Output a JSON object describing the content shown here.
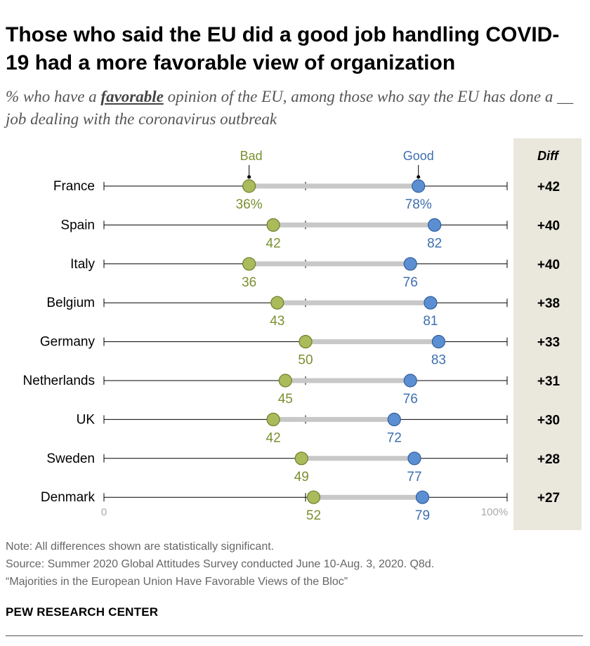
{
  "title": "Those who said the EU did a good job handling COVID-19 had a more favorable view of organization",
  "subtitle": {
    "before": "% who have a ",
    "emphasis": "favorable",
    "after": " opinion of the EU, among those who say the EU has done a __ job dealing with the coronavirus outbreak"
  },
  "colors": {
    "bad": "#a9bb5b",
    "bad_label": "#7a9030",
    "good": "#5b8fd1",
    "good_label": "#3d6fb0",
    "connector": "#c8c8c8",
    "diff_panel": "#eae8dc"
  },
  "chart_data": {
    "type": "dot-plot",
    "series": [
      {
        "name": "Bad",
        "values": [
          36,
          42,
          36,
          43,
          50,
          45,
          42,
          49,
          52
        ]
      },
      {
        "name": "Good",
        "values": [
          78,
          82,
          76,
          81,
          83,
          76,
          72,
          77,
          79
        ]
      }
    ],
    "categories": [
      "France",
      "Spain",
      "Italy",
      "Belgium",
      "Germany",
      "Netherlands",
      "UK",
      "Sweden",
      "Denmark"
    ],
    "diff_header": "Diff",
    "diff_labels": [
      "+42",
      "+40",
      "+40",
      "+38",
      "+33",
      "+31",
      "+30",
      "+28",
      "+27"
    ],
    "first_row_suffix": "%",
    "axis_labels": [
      "0",
      "100%"
    ],
    "xlim": [
      0,
      100
    ],
    "axis_ticks": [
      0,
      50,
      100
    ]
  },
  "notes": {
    "note": "Note: All differences shown are statistically significant.",
    "source": "Source: Summer 2020 Global Attitudes Survey conducted June 10-Aug. 3, 2020. Q8d.",
    "report": "“Majorities in the European Union Have Favorable Views of the Bloc”"
  },
  "brand": "PEW RESEARCH CENTER"
}
